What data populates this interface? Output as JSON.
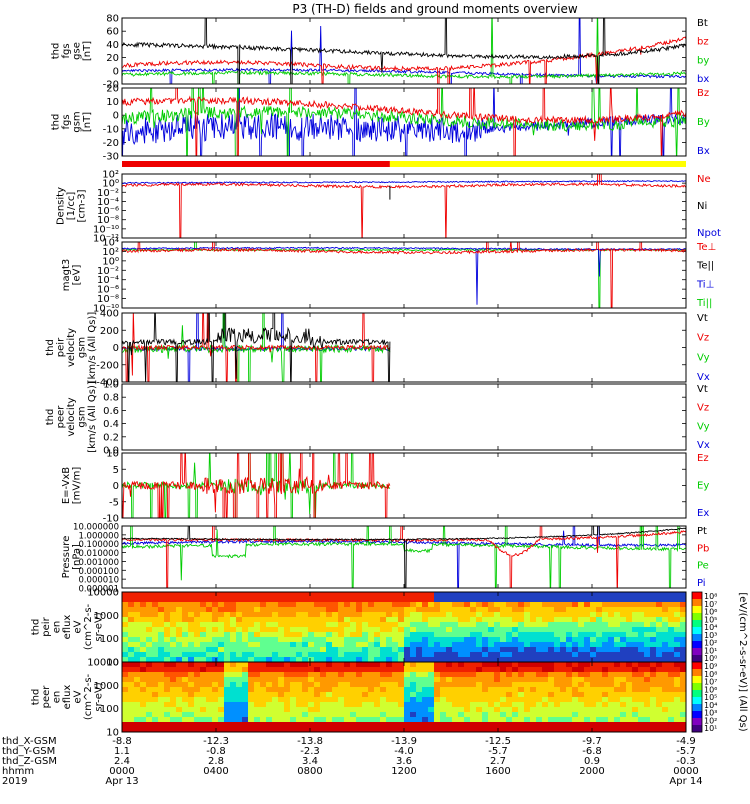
{
  "title": "P3 (TH-D) fields and ground moments overview",
  "colors": {
    "black": "#000000",
    "red": "#ee0000",
    "green": "#00cc00",
    "blue": "#0000dd",
    "yellow": "#ffff00"
  },
  "chart_data": [
    {
      "type": "line",
      "panel": "fgs_gse",
      "ylabel": [
        "thd",
        "fgs",
        "gse",
        "[nT]"
      ],
      "ylim": [
        -20,
        80
      ],
      "yticks": [
        "80",
        "60",
        "40",
        "20",
        "0",
        "-20"
      ],
      "series": [
        {
          "name": "Bt",
          "color": "black"
        },
        {
          "name": "bz",
          "color": "red"
        },
        {
          "name": "by",
          "color": "green"
        },
        {
          "name": "bx",
          "color": "blue"
        }
      ]
    },
    {
      "type": "line",
      "panel": "fgs_gsm",
      "ylabel": [
        "thd",
        "fgs",
        "gsm",
        "[nT]"
      ],
      "ylim": [
        -35,
        25
      ],
      "yticks": [
        "20",
        "10",
        "0",
        "-10",
        "-20",
        "-30"
      ],
      "series": [
        {
          "name": "Bz",
          "color": "red"
        },
        {
          "name": "By",
          "color": "green"
        },
        {
          "name": "Bx",
          "color": "blue"
        }
      ]
    },
    {
      "type": "line",
      "panel": "density",
      "ylabel": [
        "Density",
        "[1/cc]",
        "[cm-3]"
      ],
      "yscale": "log",
      "yticks": [
        "10²",
        "10⁰",
        "10⁻²",
        "10⁻⁴",
        "10⁻⁶",
        "10⁻⁸",
        "10⁻¹⁰",
        "10⁻¹²"
      ],
      "series": [
        {
          "name": "Ne",
          "color": "red"
        },
        {
          "name": "Ni",
          "color": "black"
        },
        {
          "name": "Npot",
          "color": "blue"
        }
      ]
    },
    {
      "type": "line",
      "panel": "temperature",
      "ylabel": [
        "magt3",
        "[eV]"
      ],
      "yscale": "log",
      "yticks": [
        "10⁴",
        "10²",
        "10⁰",
        "10⁻²",
        "10⁻⁴",
        "10⁻⁶",
        "10⁻⁸",
        "10⁻¹⁰"
      ],
      "series": [
        {
          "name": "Te⊥",
          "color": "red"
        },
        {
          "name": "Te||",
          "color": "black"
        },
        {
          "name": "Ti⊥",
          "color": "blue"
        },
        {
          "name": "Ti||",
          "color": "green"
        }
      ]
    },
    {
      "type": "line",
      "panel": "peir_velocity",
      "ylabel": [
        "thd",
        "peir",
        "velocity",
        "gsm",
        "[km/s (All Qs)]"
      ],
      "ylim": [
        -400,
        400
      ],
      "yticks": [
        "400",
        "200",
        "0",
        "-200",
        "-400"
      ],
      "series": [
        {
          "name": "Vt",
          "color": "black"
        },
        {
          "name": "Vz",
          "color": "red"
        },
        {
          "name": "Vy",
          "color": "green"
        },
        {
          "name": "Vx",
          "color": "blue"
        }
      ]
    },
    {
      "type": "line",
      "panel": "peer_velocity",
      "ylabel": [
        "thd",
        "peer",
        "velocity",
        "gsm",
        "[km/s (All Qs)]"
      ],
      "ylim": [
        0,
        1
      ],
      "yticks": [
        "1.0",
        "0.8",
        "0.6",
        "0.4",
        "0.2",
        "0.0"
      ],
      "series": [
        {
          "name": "Vt",
          "color": "black"
        },
        {
          "name": "Vz",
          "color": "red"
        },
        {
          "name": "Vy",
          "color": "green"
        },
        {
          "name": "Vx",
          "color": "blue"
        }
      ]
    },
    {
      "type": "line",
      "panel": "efield",
      "ylabel": [
        "E=-VxB",
        "[mV/m]"
      ],
      "ylim": [
        -10,
        10
      ],
      "yticks": [
        "10",
        "5",
        "0",
        "-5",
        "-10"
      ],
      "series": [
        {
          "name": "Ez",
          "color": "red"
        },
        {
          "name": "Ey",
          "color": "green"
        },
        {
          "name": "Ex",
          "color": "blue"
        }
      ]
    },
    {
      "type": "line",
      "panel": "pressure",
      "ylabel": [
        "Pressure",
        "[nPa]"
      ],
      "yscale": "log",
      "yticks": [
        "10.000000",
        "1.000000",
        "0.100000",
        "0.010000",
        "0.001000",
        "0.000100",
        "0.000010",
        "0.000001"
      ],
      "series": [
        {
          "name": "Pt",
          "color": "black"
        },
        {
          "name": "Pb",
          "color": "red"
        },
        {
          "name": "Pe",
          "color": "green"
        },
        {
          "name": "Pi",
          "color": "blue"
        }
      ]
    },
    {
      "type": "heatmap",
      "panel": "peir_eflux",
      "ylabel": [
        "thd",
        "peir",
        "en",
        "eflux",
        "eV",
        "(cm^2-s-",
        "sr-eV)"
      ],
      "yscale": "log",
      "yticks": [
        "10000",
        "1000",
        "100",
        "10"
      ],
      "colorbar": {
        "label": "[eV/(cm^2-s-sr-eV)] (All Qs)",
        "ticks": [
          "10⁸",
          "10⁷",
          "10⁶",
          "10⁵",
          "10⁴",
          "10³",
          "10²",
          "10¹",
          "10⁰"
        ]
      }
    },
    {
      "type": "heatmap",
      "panel": "peer_eflux",
      "ylabel": [
        "thd",
        "peer",
        "en",
        "eflux",
        "eV",
        "(cm^2-s-",
        "sr-eV)"
      ],
      "yscale": "log",
      "yticks": [
        "10000",
        "1000",
        "100",
        "10"
      ],
      "colorbar": {
        "ticks": [
          "10⁹",
          "10⁸",
          "10⁷",
          "10⁶",
          "10⁵",
          "10⁴",
          "10³",
          "10²",
          "10¹"
        ]
      }
    }
  ],
  "bar_colors": [
    "red",
    "yellow"
  ],
  "xaxis": {
    "rows": [
      {
        "label": "thd_X-GSM",
        "values": [
          "-8.8",
          "-12.3",
          "-13.8",
          "-13.9",
          "-12.5",
          "-9.7",
          "-4.9"
        ]
      },
      {
        "label": "thd_Y-GSM",
        "values": [
          "1.1",
          "-0.8",
          "-2.3",
          "-4.0",
          "-5.7",
          "-6.8",
          "-5.7"
        ]
      },
      {
        "label": "thd_Z-GSM",
        "values": [
          "2.4",
          "2.8",
          "3.4",
          "3.6",
          "2.7",
          "0.9",
          "-0.3"
        ]
      },
      {
        "label": "hhmm",
        "values": [
          "0000",
          "0400",
          "0800",
          "1200",
          "1600",
          "2000",
          "0000"
        ]
      },
      {
        "label": "2019",
        "values": [
          "Apr 13",
          "",
          "",
          "",
          "",
          "",
          "Apr 14"
        ]
      }
    ]
  }
}
